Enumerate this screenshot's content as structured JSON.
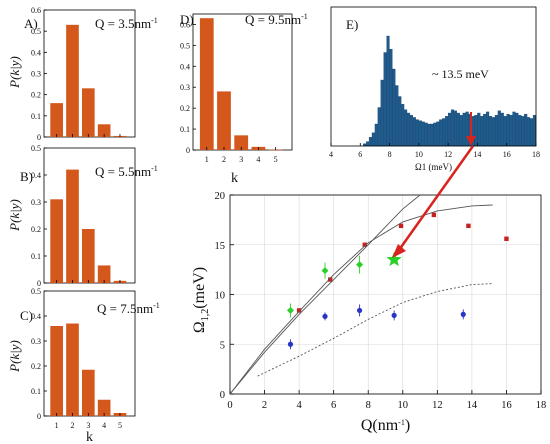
{
  "colors": {
    "bar": "#d4571c",
    "hist": "#1f5b8c",
    "red_pt": "#c8201e",
    "blue_pt": "#2a35c6",
    "green_pt": "#2ad02a",
    "arrow": "#d9231e",
    "line": "#555555"
  },
  "chart_data": [
    {
      "type": "bar",
      "panel": "A)",
      "annotation": "Q = 3.5nm-1",
      "ylabel": "P(k|y)",
      "categories": [
        "1",
        "2",
        "3",
        "4",
        "5"
      ],
      "values": [
        0.16,
        0.53,
        0.23,
        0.06,
        0.005
      ],
      "ylim": [
        0,
        0.6
      ],
      "yticks": [
        "0",
        "0.1",
        "0.2",
        "0.3",
        "0.4",
        "0.5",
        "0.6"
      ],
      "xtick_labels_shown": false
    },
    {
      "type": "bar",
      "panel": "B)",
      "annotation": "Q = 5.5nm-1",
      "ylabel": "P(k|y)",
      "categories": [
        "1",
        "2",
        "3",
        "4",
        "5"
      ],
      "values": [
        0.31,
        0.42,
        0.2,
        0.065,
        0.008
      ],
      "ylim": [
        0,
        0.5
      ],
      "yticks": [
        "0",
        "0.1",
        "0.2",
        "0.3",
        "0.4",
        "0.5"
      ],
      "xtick_labels_shown": false
    },
    {
      "type": "bar",
      "panel": "C)",
      "annotation": "Q = 7.5nm-1",
      "ylabel": "P(k|y)",
      "categories": [
        "1",
        "2",
        "3",
        "4",
        "5"
      ],
      "values": [
        0.36,
        0.37,
        0.185,
        0.065,
        0.012
      ],
      "ylim": [
        0,
        0.5
      ],
      "yticks": [
        "0",
        "0.1",
        "0.2",
        "0.3",
        "0.4",
        "0.5"
      ],
      "xlabel": "k",
      "xtick_labels_shown": true
    },
    {
      "type": "bar",
      "panel": "D)",
      "annotation": "Q = 9.5nm-1",
      "ylabel": "",
      "categories": [
        "1",
        "2",
        "3",
        "4",
        "5"
      ],
      "values": [
        0.63,
        0.28,
        0.07,
        0.015,
        0.002
      ],
      "ylim": [
        0,
        0.65
      ],
      "yticks": [
        "0",
        "0.1",
        "0.2",
        "0.3",
        "0.4",
        "0.5",
        "0.6"
      ],
      "xlabel": "k",
      "xtick_labels_shown": true
    },
    {
      "type": "bar",
      "panel": "E)",
      "subtype": "histogram",
      "annotation": "~ 13.5 meV",
      "xlabel": "Ω1 (meV)",
      "xlim": [
        4,
        18
      ],
      "xticks": [
        "4",
        "6",
        "8",
        "10",
        "12",
        "14",
        "16",
        "18"
      ],
      "x": [
        6.3,
        6.5,
        6.7,
        6.9,
        7.1,
        7.3,
        7.5,
        7.7,
        7.9,
        8.1,
        8.3,
        8.5,
        8.7,
        8.9,
        9.1,
        9.3,
        9.5,
        9.7,
        9.9,
        10.1,
        10.3,
        10.5,
        10.7,
        10.9,
        11.1,
        11.3,
        11.5,
        11.7,
        11.9,
        12.1,
        12.3,
        12.5,
        12.7,
        12.9,
        13.1,
        13.3,
        13.5,
        13.7,
        13.9,
        14.1,
        14.3,
        14.5,
        14.7,
        14.9,
        15.1,
        15.3,
        15.5,
        15.7,
        15.9,
        16.1,
        16.3,
        16.5,
        16.7,
        16.9,
        17.1,
        17.3,
        17.5,
        17.7,
        17.9
      ],
      "values": [
        0.02,
        0.04,
        0.08,
        0.12,
        0.2,
        0.35,
        0.6,
        0.85,
        1.0,
        0.88,
        0.7,
        0.55,
        0.45,
        0.38,
        0.33,
        0.3,
        0.28,
        0.26,
        0.24,
        0.23,
        0.22,
        0.21,
        0.2,
        0.2,
        0.21,
        0.22,
        0.24,
        0.25,
        0.27,
        0.3,
        0.33,
        0.32,
        0.3,
        0.28,
        0.3,
        0.31,
        0.29,
        0.27,
        0.28,
        0.3,
        0.27,
        0.29,
        0.31,
        0.27,
        0.26,
        0.28,
        0.32,
        0.3,
        0.27,
        0.29,
        0.28,
        0.31,
        0.3,
        0.28,
        0.27,
        0.29,
        0.26,
        0.25,
        0.28
      ]
    },
    {
      "type": "scatter",
      "panel": "main",
      "xlabel": "Q(nm-1)",
      "ylabel": "Ω1,2(meV)",
      "xlim": [
        0,
        18
      ],
      "ylim": [
        0,
        20
      ],
      "xticks": [
        "0",
        "2",
        "4",
        "6",
        "8",
        "10",
        "12",
        "14",
        "16",
        "18"
      ],
      "yticks": [
        "0",
        "5",
        "10",
        "15",
        "20"
      ],
      "series": [
        {
          "color": "red",
          "marker": "square",
          "x": [
            4.0,
            5.8,
            7.8,
            9.9,
            11.8,
            13.8,
            16.0
          ],
          "y": [
            8.4,
            11.5,
            15.0,
            16.9,
            18.0,
            16.9,
            15.6
          ]
        },
        {
          "color": "green",
          "marker": "diamond",
          "x": [
            3.5,
            5.5,
            7.5
          ],
          "y": [
            8.4,
            12.4,
            13.0
          ],
          "err": [
            0.7,
            0.8,
            0.9
          ]
        },
        {
          "color": "green",
          "marker": "star",
          "x": [
            9.5
          ],
          "y": [
            13.5
          ]
        },
        {
          "color": "blue",
          "marker": "circle",
          "x": [
            3.5,
            5.5,
            7.5,
            9.5,
            13.5
          ],
          "y": [
            5.0,
            7.8,
            8.4,
            7.9,
            8.0
          ],
          "err": [
            0.5,
            0.4,
            0.6,
            0.5,
            0.5
          ]
        },
        {
          "style": "solid",
          "x": [
            0,
            2,
            4,
            6,
            8,
            9,
            10,
            11
          ],
          "y": [
            0,
            4.2,
            8.0,
            11.5,
            15.0,
            16.8,
            18.6,
            20
          ]
        },
        {
          "style": "solid",
          "x": [
            0,
            2,
            4,
            6,
            8,
            10,
            12,
            14,
            15.2
          ],
          "y": [
            0,
            4.5,
            8.3,
            12.0,
            15.2,
            17.3,
            18.4,
            18.9,
            19.0
          ]
        },
        {
          "style": "dotted",
          "x": [
            1.6,
            4,
            6,
            8,
            10,
            12,
            14,
            15.2
          ],
          "y": [
            1.8,
            3.8,
            5.6,
            7.5,
            9.2,
            10.3,
            11.0,
            11.1
          ]
        }
      ]
    }
  ]
}
